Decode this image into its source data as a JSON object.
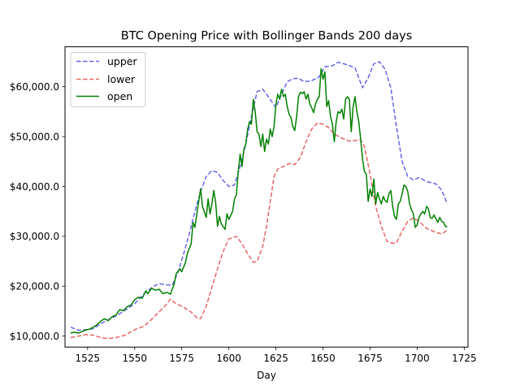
{
  "chart_data": {
    "type": "line",
    "title": "BTC Opening Price with Bollinger Bands 200 days",
    "xlabel": "Day",
    "ylabel": "",
    "xlim": [
      1513,
      1727
    ],
    "ylim": [
      7800,
      68000
    ],
    "xticks": [
      1525,
      1550,
      1575,
      1600,
      1625,
      1650,
      1675,
      1700,
      1725
    ],
    "yticks": [
      10000,
      20000,
      30000,
      40000,
      50000,
      60000
    ],
    "ytick_labels": [
      "$10,000.0",
      "$20,000.0",
      "$30,000.0",
      "$40,000.0",
      "$50,000.0",
      "$60,000.0"
    ],
    "grid": false,
    "legend_position": "upper-left",
    "series": [
      {
        "name": "upper",
        "color": "#6666e8",
        "style": "dashed",
        "points": [
          [
            1516,
            11800
          ],
          [
            1520,
            11200
          ],
          [
            1524,
            11300
          ],
          [
            1528,
            11500
          ],
          [
            1532,
            12500
          ],
          [
            1536,
            13300
          ],
          [
            1540,
            14000
          ],
          [
            1545,
            15200
          ],
          [
            1550,
            16500
          ],
          [
            1555,
            18500
          ],
          [
            1560,
            20000
          ],
          [
            1563,
            20500
          ],
          [
            1567,
            20300
          ],
          [
            1570,
            20200
          ],
          [
            1573,
            22800
          ],
          [
            1576,
            26500
          ],
          [
            1579,
            30500
          ],
          [
            1582,
            35000
          ],
          [
            1585,
            39000
          ],
          [
            1588,
            42000
          ],
          [
            1591,
            43200
          ],
          [
            1594,
            42800
          ],
          [
            1597,
            41200
          ],
          [
            1600,
            40000
          ],
          [
            1603,
            40300
          ],
          [
            1606,
            44000
          ],
          [
            1609,
            48500
          ],
          [
            1612,
            54000
          ],
          [
            1615,
            59000
          ],
          [
            1618,
            59500
          ],
          [
            1621,
            58000
          ],
          [
            1625,
            55800
          ],
          [
            1628,
            58500
          ],
          [
            1631,
            61000
          ],
          [
            1634,
            61600
          ],
          [
            1637,
            61700
          ],
          [
            1640,
            61000
          ],
          [
            1644,
            61200
          ],
          [
            1648,
            62000
          ],
          [
            1651,
            64000
          ],
          [
            1655,
            64200
          ],
          [
            1658,
            64900
          ],
          [
            1662,
            64500
          ],
          [
            1667,
            63800
          ],
          [
            1671,
            59800
          ],
          [
            1674,
            61800
          ],
          [
            1677,
            64600
          ],
          [
            1680,
            65000
          ],
          [
            1683,
            63500
          ],
          [
            1686,
            59800
          ],
          [
            1689,
            52000
          ],
          [
            1692,
            45000
          ],
          [
            1695,
            42000
          ],
          [
            1698,
            41300
          ],
          [
            1701,
            41800
          ],
          [
            1705,
            41000
          ],
          [
            1710,
            40500
          ],
          [
            1713,
            39300
          ],
          [
            1716,
            36500
          ]
        ]
      },
      {
        "name": "lower",
        "color": "#e86666",
        "style": "dashed",
        "points": [
          [
            1516,
            9700
          ],
          [
            1520,
            10000
          ],
          [
            1524,
            10300
          ],
          [
            1528,
            10200
          ],
          [
            1532,
            9700
          ],
          [
            1536,
            9500
          ],
          [
            1540,
            9700
          ],
          [
            1545,
            10200
          ],
          [
            1550,
            11300
          ],
          [
            1555,
            12000
          ],
          [
            1558,
            13000
          ],
          [
            1562,
            14500
          ],
          [
            1566,
            16000
          ],
          [
            1569,
            17400
          ],
          [
            1572,
            16500
          ],
          [
            1576,
            15800
          ],
          [
            1580,
            14800
          ],
          [
            1583,
            13700
          ],
          [
            1585,
            13500
          ],
          [
            1588,
            16000
          ],
          [
            1591,
            19800
          ],
          [
            1594,
            23500
          ],
          [
            1597,
            27000
          ],
          [
            1600,
            29500
          ],
          [
            1604,
            30000
          ],
          [
            1607,
            28500
          ],
          [
            1610,
            26500
          ],
          [
            1613,
            24800
          ],
          [
            1615,
            25000
          ],
          [
            1618,
            28000
          ],
          [
            1620,
            32000
          ],
          [
            1622,
            37000
          ],
          [
            1624,
            42000
          ],
          [
            1626,
            43500
          ],
          [
            1629,
            44000
          ],
          [
            1632,
            44600
          ],
          [
            1635,
            44400
          ],
          [
            1638,
            45800
          ],
          [
            1641,
            49000
          ],
          [
            1644,
            51500
          ],
          [
            1647,
            52700
          ],
          [
            1650,
            52500
          ],
          [
            1653,
            51800
          ],
          [
            1656,
            50500
          ],
          [
            1660,
            49700
          ],
          [
            1664,
            49100
          ],
          [
            1667,
            49200
          ],
          [
            1670,
            49400
          ],
          [
            1672,
            48000
          ],
          [
            1675,
            42500
          ],
          [
            1678,
            36000
          ],
          [
            1681,
            32000
          ],
          [
            1684,
            29000
          ],
          [
            1687,
            28600
          ],
          [
            1689,
            28700
          ],
          [
            1692,
            31000
          ],
          [
            1695,
            33000
          ],
          [
            1698,
            33700
          ],
          [
            1701,
            33000
          ],
          [
            1705,
            31600
          ],
          [
            1710,
            30800
          ],
          [
            1713,
            30500
          ],
          [
            1716,
            31200
          ]
        ]
      },
      {
        "name": "open",
        "color": "#008000",
        "style": "solid",
        "points": [
          [
            1516,
            10600
          ],
          [
            1518,
            10800
          ],
          [
            1520,
            10600
          ],
          [
            1522,
            10900
          ],
          [
            1524,
            11200
          ],
          [
            1526,
            11400
          ],
          [
            1528,
            11800
          ],
          [
            1530,
            12300
          ],
          [
            1532,
            13000
          ],
          [
            1534,
            13500
          ],
          [
            1536,
            13100
          ],
          [
            1538,
            13900
          ],
          [
            1540,
            14200
          ],
          [
            1542,
            15300
          ],
          [
            1544,
            15100
          ],
          [
            1546,
            15900
          ],
          [
            1548,
            16200
          ],
          [
            1550,
            17300
          ],
          [
            1552,
            17800
          ],
          [
            1554,
            17600
          ],
          [
            1556,
            19100
          ],
          [
            1557,
            18500
          ],
          [
            1559,
            19600
          ],
          [
            1561,
            19200
          ],
          [
            1563,
            19400
          ],
          [
            1565,
            18500
          ],
          [
            1567,
            18800
          ],
          [
            1569,
            18400
          ],
          [
            1571,
            20500
          ],
          [
            1572,
            22500
          ],
          [
            1574,
            23500
          ],
          [
            1575,
            22900
          ],
          [
            1577,
            24800
          ],
          [
            1578,
            26600
          ],
          [
            1580,
            28500
          ],
          [
            1581,
            32800
          ],
          [
            1582,
            31800
          ],
          [
            1583,
            34500
          ],
          [
            1585,
            39500
          ],
          [
            1586,
            36000
          ],
          [
            1588,
            33800
          ],
          [
            1589,
            37500
          ],
          [
            1590,
            34500
          ],
          [
            1591,
            36500
          ],
          [
            1592,
            39200
          ],
          [
            1593,
            36800
          ],
          [
            1594,
            32000
          ],
          [
            1595,
            34000
          ],
          [
            1596,
            32500
          ],
          [
            1598,
            31400
          ],
          [
            1599,
            34500
          ],
          [
            1600,
            33400
          ],
          [
            1601,
            34200
          ],
          [
            1602,
            35000
          ],
          [
            1603,
            37500
          ],
          [
            1604,
            38300
          ],
          [
            1605,
            43000
          ],
          [
            1606,
            46500
          ],
          [
            1607,
            44000
          ],
          [
            1608,
            47500
          ],
          [
            1609,
            48500
          ],
          [
            1610,
            51500
          ],
          [
            1611,
            53000
          ],
          [
            1612,
            52500
          ],
          [
            1613,
            57500
          ],
          [
            1614,
            55000
          ],
          [
            1615,
            51000
          ],
          [
            1616,
            50500
          ],
          [
            1617,
            48000
          ],
          [
            1618,
            50500
          ],
          [
            1619,
            47000
          ],
          [
            1620,
            49500
          ],
          [
            1621,
            48500
          ],
          [
            1622,
            51500
          ],
          [
            1623,
            50000
          ],
          [
            1624,
            52000
          ],
          [
            1625,
            56500
          ],
          [
            1626,
            58500
          ],
          [
            1627,
            57500
          ],
          [
            1628,
            59500
          ],
          [
            1629,
            58000
          ],
          [
            1630,
            58500
          ],
          [
            1631,
            56000
          ],
          [
            1632,
            54500
          ],
          [
            1633,
            53800
          ],
          [
            1634,
            52000
          ],
          [
            1635,
            51200
          ],
          [
            1636,
            54000
          ],
          [
            1637,
            58000
          ],
          [
            1638,
            58900
          ],
          [
            1639,
            58600
          ],
          [
            1640,
            59000
          ],
          [
            1641,
            57500
          ],
          [
            1642,
            58500
          ],
          [
            1643,
            56500
          ],
          [
            1644,
            55800
          ],
          [
            1645,
            54800
          ],
          [
            1646,
            56500
          ],
          [
            1647,
            57500
          ],
          [
            1648,
            58000
          ],
          [
            1649,
            63600
          ],
          [
            1650,
            61500
          ],
          [
            1651,
            63000
          ],
          [
            1652,
            56000
          ],
          [
            1653,
            57200
          ],
          [
            1654,
            54000
          ],
          [
            1655,
            52500
          ],
          [
            1656,
            49000
          ],
          [
            1657,
            53000
          ],
          [
            1658,
            55000
          ],
          [
            1659,
            54700
          ],
          [
            1660,
            55500
          ],
          [
            1661,
            53500
          ],
          [
            1662,
            57500
          ],
          [
            1663,
            58000
          ],
          [
            1664,
            57500
          ],
          [
            1665,
            51000
          ],
          [
            1666,
            56000
          ],
          [
            1667,
            58000
          ],
          [
            1668,
            55000
          ],
          [
            1669,
            53000
          ],
          [
            1670,
            49500
          ],
          [
            1671,
            45500
          ],
          [
            1672,
            43000
          ],
          [
            1673,
            42500
          ],
          [
            1674,
            37000
          ],
          [
            1675,
            39500
          ],
          [
            1676,
            38000
          ],
          [
            1677,
            41500
          ],
          [
            1678,
            36500
          ],
          [
            1679,
            38800
          ],
          [
            1680,
            37500
          ],
          [
            1681,
            36500
          ],
          [
            1682,
            38000
          ],
          [
            1683,
            37200
          ],
          [
            1684,
            36800
          ],
          [
            1685,
            38500
          ],
          [
            1686,
            39200
          ],
          [
            1687,
            36000
          ],
          [
            1688,
            34000
          ],
          [
            1689,
            33400
          ],
          [
            1690,
            36500
          ],
          [
            1691,
            37000
          ],
          [
            1692,
            38500
          ],
          [
            1693,
            40300
          ],
          [
            1694,
            40000
          ],
          [
            1695,
            39000
          ],
          [
            1696,
            36500
          ],
          [
            1697,
            35300
          ],
          [
            1698,
            34500
          ],
          [
            1699,
            31800
          ],
          [
            1700,
            32300
          ],
          [
            1701,
            33800
          ],
          [
            1702,
            34500
          ],
          [
            1703,
            35000
          ],
          [
            1704,
            34500
          ],
          [
            1705,
            36000
          ],
          [
            1706,
            35500
          ],
          [
            1707,
            33700
          ],
          [
            1708,
            33600
          ],
          [
            1709,
            34300
          ],
          [
            1710,
            33500
          ],
          [
            1711,
            32800
          ],
          [
            1712,
            33800
          ],
          [
            1713,
            33000
          ],
          [
            1714,
            32800
          ],
          [
            1715,
            32000
          ],
          [
            1716,
            31900
          ]
        ]
      }
    ]
  }
}
